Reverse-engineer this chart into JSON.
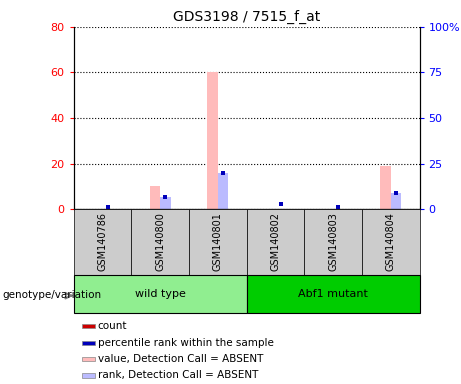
{
  "title": "GDS3198 / 7515_f_at",
  "samples": [
    "GSM140786",
    "GSM140800",
    "GSM140801",
    "GSM140802",
    "GSM140803",
    "GSM140804"
  ],
  "groups": [
    {
      "label": "wild type",
      "indices": [
        0,
        1,
        2
      ],
      "color": "#90ee90"
    },
    {
      "label": "Abf1 mutant",
      "indices": [
        3,
        4,
        5
      ],
      "color": "#00cc00"
    }
  ],
  "value_absent": [
    0,
    10,
    60,
    0,
    0,
    19
  ],
  "rank_absent": [
    0,
    7,
    20,
    0,
    0,
    9
  ],
  "count": [
    0,
    0,
    0,
    0,
    0,
    0
  ],
  "percentile": [
    1,
    7,
    20,
    3,
    1,
    9
  ],
  "ylim_left": [
    0,
    80
  ],
  "ylim_right": [
    0,
    100
  ],
  "yticks_left": [
    0,
    20,
    40,
    60,
    80
  ],
  "yticks_right": [
    0,
    25,
    50,
    75,
    100
  ],
  "yticklabels_left": [
    "0",
    "20",
    "40",
    "60",
    "80"
  ],
  "yticklabels_right": [
    "0",
    "25",
    "50",
    "75",
    "100%"
  ],
  "color_count": "#cc0000",
  "color_percentile": "#0000bb",
  "color_value_absent": "#ffbbbb",
  "color_rank_absent": "#bbbbff",
  "bar_width": 0.18,
  "bg_color": "#cccccc",
  "legend_items": [
    {
      "label": "count",
      "color": "#cc0000"
    },
    {
      "label": "percentile rank within the sample",
      "color": "#0000bb"
    },
    {
      "label": "value, Detection Call = ABSENT",
      "color": "#ffbbbb"
    },
    {
      "label": "rank, Detection Call = ABSENT",
      "color": "#bbbbff"
    }
  ]
}
